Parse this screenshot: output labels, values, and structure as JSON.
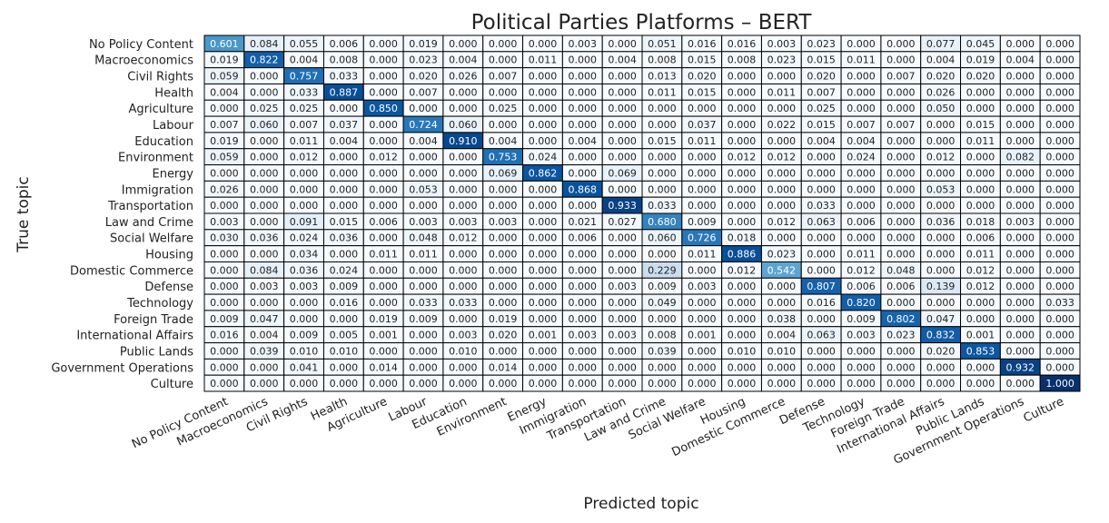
{
  "chart_data": {
    "type": "heatmap",
    "title": "Political Parties Platforms – BERT",
    "xlabel": "Predicted topic",
    "ylabel": "True topic",
    "value_range": [
      0,
      1
    ],
    "colormap": "Blues",
    "rows": [
      "No Policy Content",
      "Macroeconomics",
      "Civil Rights",
      "Health",
      "Agriculture",
      "Labour",
      "Education",
      "Environment",
      "Energy",
      "Immigration",
      "Transportation",
      "Law and Crime",
      "Social Welfare",
      "Housing",
      "Domestic Commerce",
      "Defense",
      "Technology",
      "Foreign Trade",
      "International Affairs",
      "Public Lands",
      "Government Operations",
      "Culture"
    ],
    "columns": [
      "No Policy Content",
      "Macroeconomics",
      "Civil Rights",
      "Health",
      "Agriculture",
      "Labour",
      "Education",
      "Environment",
      "Energy",
      "Immigration",
      "Transportation",
      "Law and Crime",
      "Social Welfare",
      "Housing",
      "Domestic Commerce",
      "Defense",
      "Technology",
      "Foreign Trade",
      "International Affairs",
      "Public Lands",
      "Government Operations",
      "Culture"
    ],
    "values": [
      [
        "0.601",
        "0.084",
        "0.055",
        "0.006",
        "0.000",
        "0.019",
        "0.000",
        "0.000",
        "0.000",
        "0.003",
        "0.000",
        "0.051",
        "0.016",
        "0.016",
        "0.003",
        "0.023",
        "0.000",
        "0.000",
        "0.077",
        "0.045",
        "0.000",
        "0.000"
      ],
      [
        "0.019",
        "0.822",
        "0.004",
        "0.008",
        "0.000",
        "0.023",
        "0.004",
        "0.000",
        "0.011",
        "0.000",
        "0.004",
        "0.008",
        "0.015",
        "0.008",
        "0.023",
        "0.015",
        "0.011",
        "0.000",
        "0.004",
        "0.019",
        "0.004",
        "0.000"
      ],
      [
        "0.059",
        "0.000",
        "0.757",
        "0.033",
        "0.000",
        "0.020",
        "0.026",
        "0.007",
        "0.000",
        "0.000",
        "0.000",
        "0.013",
        "0.020",
        "0.000",
        "0.000",
        "0.020",
        "0.000",
        "0.007",
        "0.020",
        "0.020",
        "0.000",
        "0.000"
      ],
      [
        "0.004",
        "0.000",
        "0.033",
        "0.887",
        "0.000",
        "0.007",
        "0.000",
        "0.000",
        "0.000",
        "0.000",
        "0.000",
        "0.011",
        "0.015",
        "0.000",
        "0.011",
        "0.007",
        "0.000",
        "0.000",
        "0.026",
        "0.000",
        "0.000",
        "0.000"
      ],
      [
        "0.000",
        "0.025",
        "0.025",
        "0.000",
        "0.850",
        "0.000",
        "0.000",
        "0.025",
        "0.000",
        "0.000",
        "0.000",
        "0.000",
        "0.000",
        "0.000",
        "0.000",
        "0.025",
        "0.000",
        "0.000",
        "0.050",
        "0.000",
        "0.000",
        "0.000"
      ],
      [
        "0.007",
        "0.060",
        "0.007",
        "0.037",
        "0.000",
        "0.724",
        "0.060",
        "0.000",
        "0.000",
        "0.000",
        "0.000",
        "0.000",
        "0.037",
        "0.000",
        "0.022",
        "0.015",
        "0.007",
        "0.007",
        "0.000",
        "0.015",
        "0.000",
        "0.000"
      ],
      [
        "0.019",
        "0.000",
        "0.011",
        "0.004",
        "0.000",
        "0.004",
        "0.910",
        "0.004",
        "0.000",
        "0.004",
        "0.000",
        "0.015",
        "0.011",
        "0.000",
        "0.000",
        "0.004",
        "0.004",
        "0.000",
        "0.000",
        "0.011",
        "0.000",
        "0.000"
      ],
      [
        "0.059",
        "0.000",
        "0.012",
        "0.000",
        "0.012",
        "0.000",
        "0.000",
        "0.753",
        "0.024",
        "0.000",
        "0.000",
        "0.000",
        "0.000",
        "0.012",
        "0.012",
        "0.000",
        "0.024",
        "0.000",
        "0.012",
        "0.000",
        "0.082",
        "0.000"
      ],
      [
        "0.000",
        "0.000",
        "0.000",
        "0.000",
        "0.000",
        "0.000",
        "0.000",
        "0.069",
        "0.862",
        "0.000",
        "0.069",
        "0.000",
        "0.000",
        "0.000",
        "0.000",
        "0.000",
        "0.000",
        "0.000",
        "0.000",
        "0.000",
        "0.000",
        "0.000"
      ],
      [
        "0.026",
        "0.000",
        "0.000",
        "0.000",
        "0.000",
        "0.053",
        "0.000",
        "0.000",
        "0.000",
        "0.868",
        "0.000",
        "0.000",
        "0.000",
        "0.000",
        "0.000",
        "0.000",
        "0.000",
        "0.000",
        "0.053",
        "0.000",
        "0.000",
        "0.000"
      ],
      [
        "0.000",
        "0.000",
        "0.000",
        "0.000",
        "0.000",
        "0.000",
        "0.000",
        "0.000",
        "0.000",
        "0.000",
        "0.933",
        "0.033",
        "0.000",
        "0.000",
        "0.000",
        "0.033",
        "0.000",
        "0.000",
        "0.000",
        "0.000",
        "0.000",
        "0.000"
      ],
      [
        "0.003",
        "0.000",
        "0.091",
        "0.015",
        "0.006",
        "0.003",
        "0.003",
        "0.003",
        "0.000",
        "0.021",
        "0.027",
        "0.680",
        "0.009",
        "0.000",
        "0.012",
        "0.063",
        "0.006",
        "0.000",
        "0.036",
        "0.018",
        "0.003",
        "0.000"
      ],
      [
        "0.030",
        "0.036",
        "0.024",
        "0.036",
        "0.000",
        "0.048",
        "0.012",
        "0.000",
        "0.000",
        "0.006",
        "0.000",
        "0.060",
        "0.726",
        "0.018",
        "0.000",
        "0.000",
        "0.000",
        "0.000",
        "0.000",
        "0.006",
        "0.000",
        "0.000"
      ],
      [
        "0.000",
        "0.000",
        "0.034",
        "0.000",
        "0.011",
        "0.011",
        "0.000",
        "0.000",
        "0.000",
        "0.000",
        "0.000",
        "0.000",
        "0.011",
        "0.886",
        "0.023",
        "0.000",
        "0.011",
        "0.000",
        "0.000",
        "0.011",
        "0.000",
        "0.000"
      ],
      [
        "0.000",
        "0.084",
        "0.036",
        "0.024",
        "0.000",
        "0.000",
        "0.000",
        "0.000",
        "0.000",
        "0.000",
        "0.000",
        "0.229",
        "0.000",
        "0.012",
        "0.542",
        "0.000",
        "0.012",
        "0.048",
        "0.000",
        "0.012",
        "0.000",
        "0.000"
      ],
      [
        "0.000",
        "0.003",
        "0.003",
        "0.009",
        "0.000",
        "0.000",
        "0.000",
        "0.000",
        "0.000",
        "0.000",
        "0.003",
        "0.009",
        "0.003",
        "0.000",
        "0.000",
        "0.807",
        "0.006",
        "0.006",
        "0.139",
        "0.012",
        "0.000",
        "0.000"
      ],
      [
        "0.000",
        "0.000",
        "0.000",
        "0.016",
        "0.000",
        "0.033",
        "0.033",
        "0.000",
        "0.000",
        "0.000",
        "0.000",
        "0.049",
        "0.000",
        "0.000",
        "0.000",
        "0.016",
        "0.820",
        "0.000",
        "0.000",
        "0.000",
        "0.000",
        "0.033"
      ],
      [
        "0.009",
        "0.047",
        "0.000",
        "0.000",
        "0.019",
        "0.009",
        "0.000",
        "0.019",
        "0.000",
        "0.000",
        "0.000",
        "0.000",
        "0.000",
        "0.000",
        "0.038",
        "0.000",
        "0.009",
        "0.802",
        "0.047",
        "0.000",
        "0.000",
        "0.000"
      ],
      [
        "0.016",
        "0.004",
        "0.009",
        "0.005",
        "0.001",
        "0.000",
        "0.003",
        "0.020",
        "0.001",
        "0.003",
        "0.003",
        "0.008",
        "0.001",
        "0.000",
        "0.004",
        "0.063",
        "0.003",
        "0.023",
        "0.832",
        "0.001",
        "0.000",
        "0.000"
      ],
      [
        "0.000",
        "0.039",
        "0.010",
        "0.010",
        "0.000",
        "0.000",
        "0.010",
        "0.000",
        "0.000",
        "0.000",
        "0.000",
        "0.039",
        "0.000",
        "0.010",
        "0.010",
        "0.000",
        "0.000",
        "0.000",
        "0.020",
        "0.853",
        "0.000",
        "0.000"
      ],
      [
        "0.000",
        "0.000",
        "0.041",
        "0.000",
        "0.014",
        "0.000",
        "0.000",
        "0.014",
        "0.000",
        "0.000",
        "0.000",
        "0.000",
        "0.000",
        "0.000",
        "0.000",
        "0.000",
        "0.000",
        "0.000",
        "0.000",
        "0.000",
        "0.932",
        "0.000"
      ],
      [
        "0.000",
        "0.000",
        "0.000",
        "0.000",
        "0.000",
        "0.000",
        "0.000",
        "0.000",
        "0.000",
        "0.000",
        "0.000",
        "0.000",
        "0.000",
        "0.000",
        "0.000",
        "0.000",
        "0.000",
        "0.000",
        "0.000",
        "0.000",
        "0.000",
        "1.000"
      ]
    ]
  }
}
